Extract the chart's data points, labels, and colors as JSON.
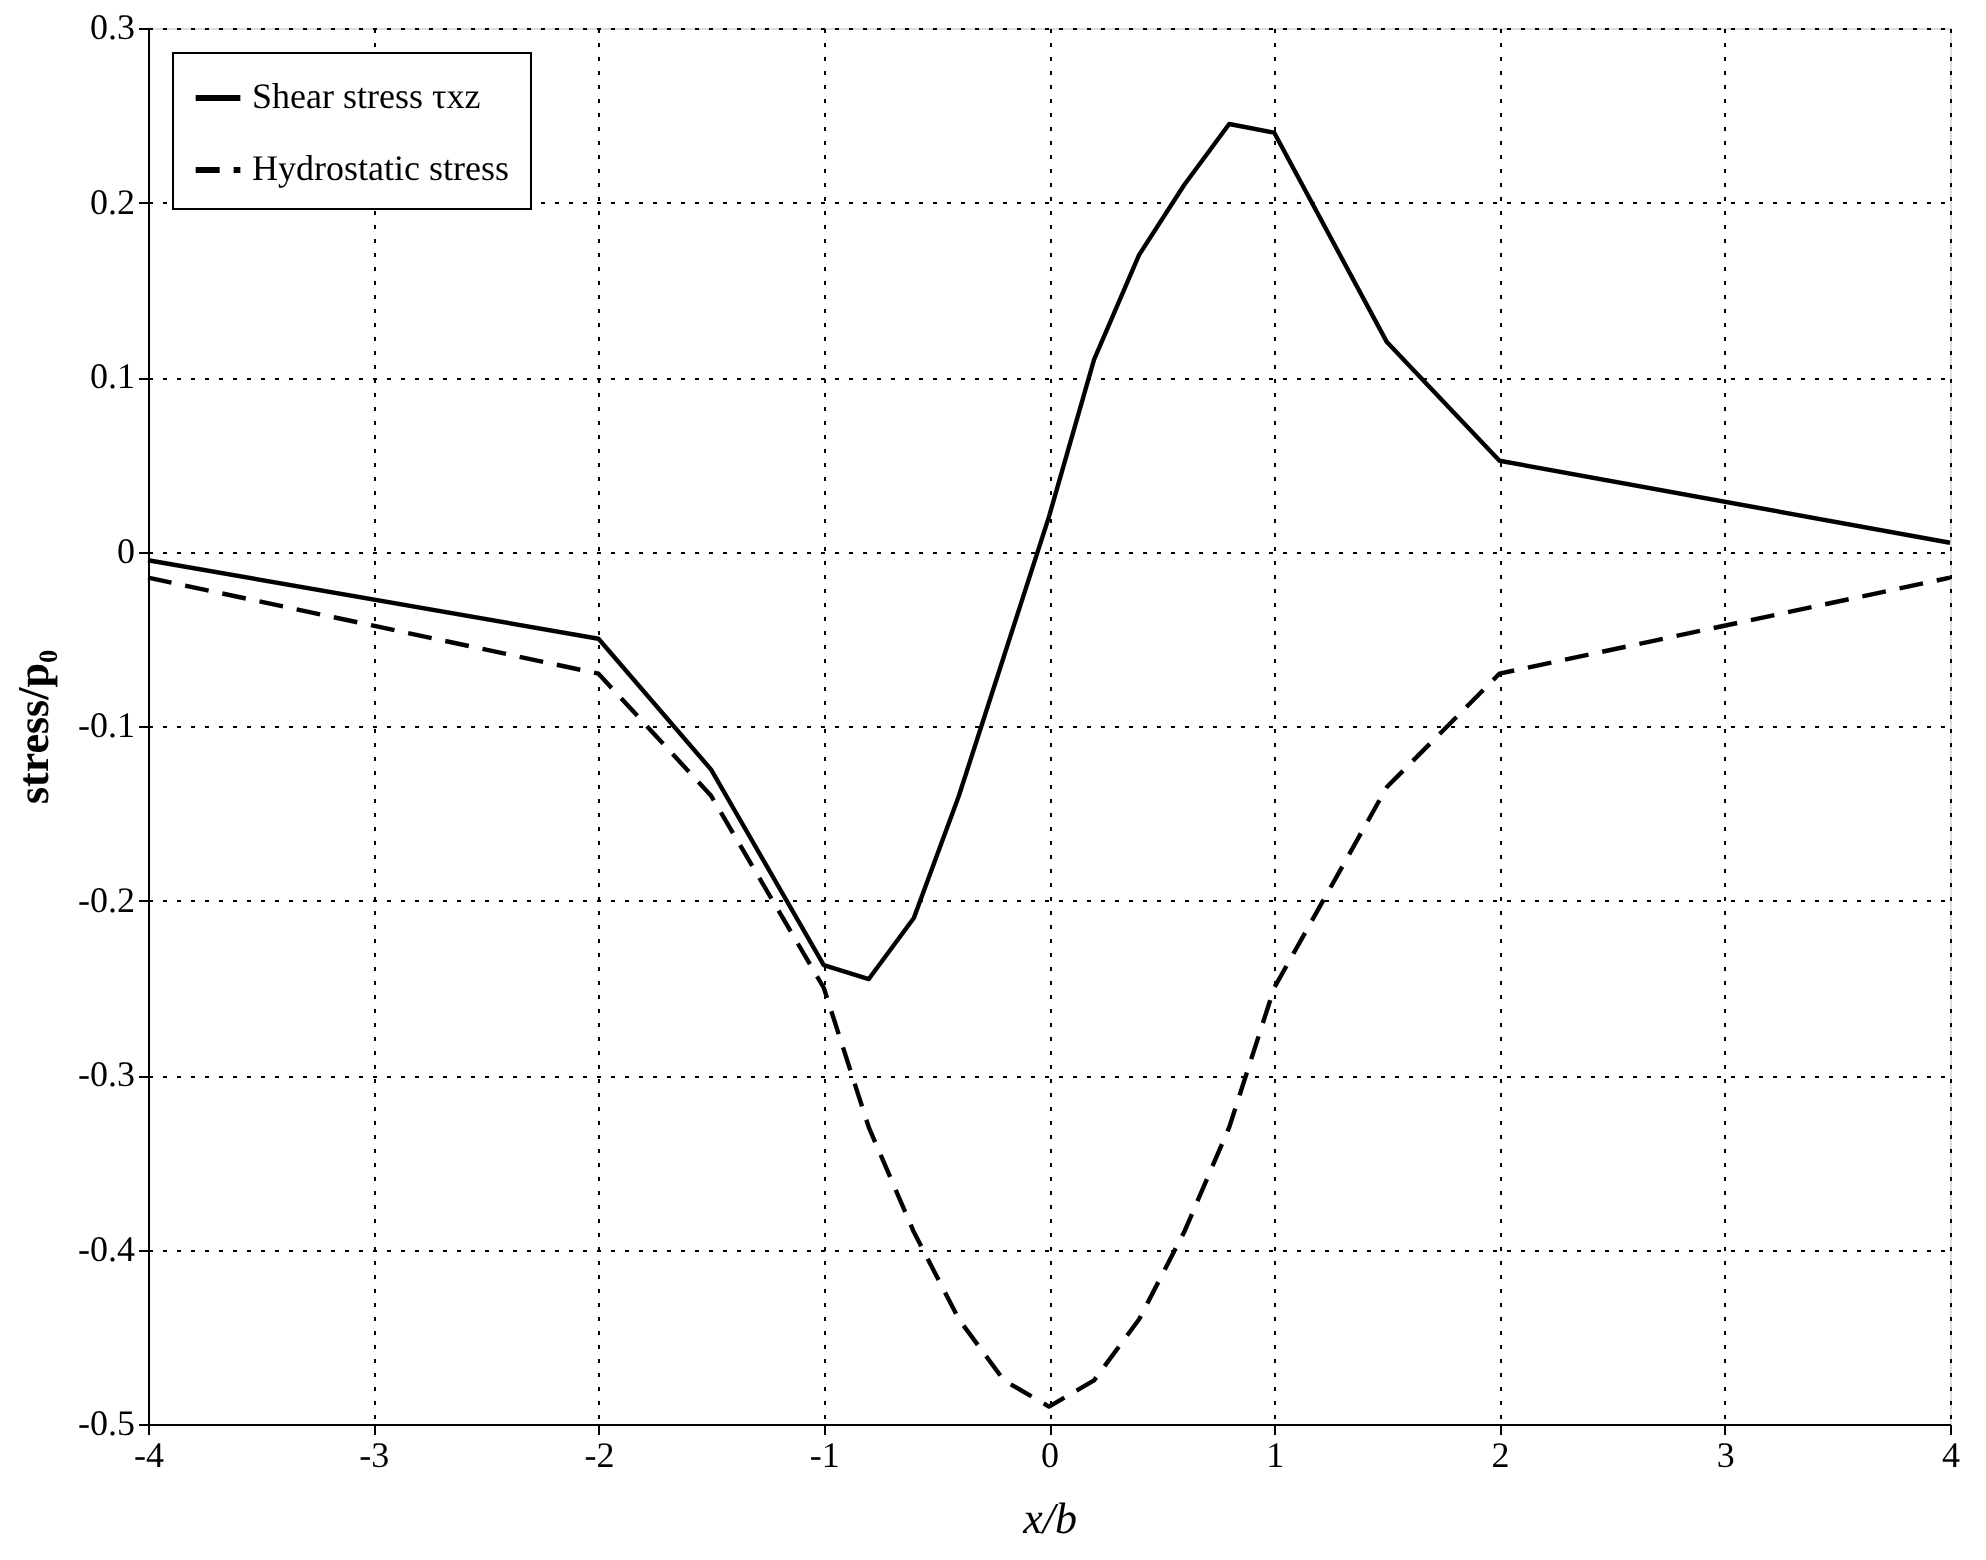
{
  "chart_data": {
    "type": "line",
    "xlabel": "x/b",
    "ylabel": "stress/p₀",
    "xlim": [
      -4,
      4
    ],
    "xticks": [
      -4,
      -3,
      -2,
      -1,
      0,
      1,
      2,
      3,
      4
    ],
    "ylim": [
      -0.5,
      0.3
    ],
    "yticks": [
      -0.5,
      -0.4,
      -0.3,
      -0.2,
      -0.1,
      0,
      0.1,
      0.2,
      0.3
    ],
    "grid": true,
    "legend": "top left",
    "series": [
      {
        "name": "Shear stress τxz",
        "color": "#000000",
        "line_style": "solid",
        "x": [
          -4,
          -2,
          -1.5,
          -1,
          -0.8,
          -0.6,
          -0.4,
          -0.2,
          0,
          0.2,
          0.4,
          0.6,
          0.8,
          1,
          1.5,
          2,
          4
        ],
        "values": [
          -0.005,
          -0.05,
          -0.125,
          -0.237,
          -0.245,
          -0.21,
          -0.14,
          -0.06,
          0.02,
          0.11,
          0.17,
          0.21,
          0.245,
          0.24,
          0.12,
          0.052,
          0.005
        ]
      },
      {
        "name": "Hydrostatic stress",
        "color": "#000000",
        "line_style": "dashed",
        "x": [
          -4,
          -2,
          -1.5,
          -1,
          -0.8,
          -0.6,
          -0.4,
          -0.2,
          0,
          0.2,
          0.4,
          0.6,
          0.8,
          1,
          1.5,
          2,
          4
        ],
        "values": [
          -0.015,
          -0.07,
          -0.14,
          -0.25,
          -0.33,
          -0.39,
          -0.44,
          -0.475,
          -0.49,
          -0.475,
          -0.44,
          -0.39,
          -0.33,
          -0.25,
          -0.135,
          -0.07,
          -0.015
        ]
      }
    ]
  }
}
